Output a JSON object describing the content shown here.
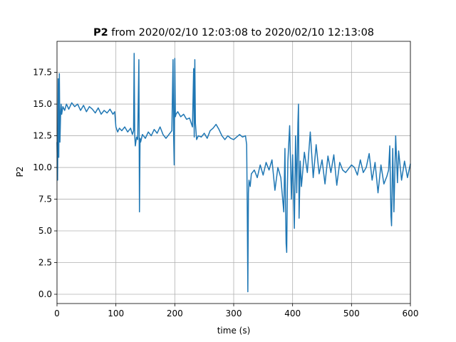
{
  "chart_data": {
    "type": "line",
    "title_label": "P2",
    "title": "from 2020/02/10 12:03:08 to 2020/02/10 12:13:08",
    "xlabel": "time (s)",
    "ylabel": "P2",
    "xlim": [
      0,
      600
    ],
    "ylim": [
      -0.73,
      19.95
    ],
    "xticks": [
      0,
      100,
      200,
      300,
      400,
      500,
      600
    ],
    "yticks": [
      {
        "value": 0,
        "label": "0.0"
      },
      2.5,
      {
        "value": 5,
        "label": "5.0"
      },
      7.5,
      {
        "value": 10,
        "label": "10.0"
      },
      12.5,
      {
        "value": 15,
        "label": "15.0"
      },
      17.5
    ],
    "grid": true,
    "x": [
      0,
      1,
      2,
      3,
      4,
      5,
      6,
      7,
      8,
      10,
      13,
      16,
      20,
      25,
      30,
      35,
      40,
      45,
      50,
      55,
      60,
      65,
      70,
      75,
      80,
      85,
      90,
      95,
      98,
      100,
      103,
      106,
      110,
      115,
      120,
      125,
      128,
      130,
      131,
      132,
      133,
      135,
      137,
      139,
      140,
      141,
      142,
      145,
      150,
      155,
      160,
      165,
      170,
      175,
      180,
      185,
      190,
      195,
      197,
      198,
      199,
      200,
      201,
      202,
      205,
      210,
      215,
      220,
      225,
      230,
      232,
      233,
      234,
      235,
      237,
      240,
      245,
      250,
      255,
      260,
      265,
      270,
      275,
      280,
      285,
      290,
      295,
      300,
      305,
      310,
      315,
      320,
      322,
      323,
      324,
      325,
      326,
      328,
      330,
      335,
      340,
      345,
      350,
      355,
      360,
      365,
      370,
      375,
      380,
      385,
      387,
      388,
      389,
      390,
      391,
      392,
      395,
      398,
      400,
      403,
      405,
      407,
      409,
      410,
      411,
      413,
      415,
      420,
      425,
      430,
      435,
      440,
      445,
      450,
      455,
      460,
      465,
      470,
      475,
      480,
      485,
      490,
      495,
      500,
      505,
      510,
      515,
      520,
      525,
      530,
      535,
      540,
      545,
      550,
      555,
      560,
      563,
      565,
      567,
      568,
      570,
      572,
      575,
      578,
      580,
      585,
      590,
      595,
      600
    ],
    "series": [
      {
        "name": "P2",
        "color": "#1f77b4",
        "values": [
          12,
          9,
          17,
          10.8,
          17.4,
          12,
          14,
          15,
          14.2,
          14.8,
          14.5,
          15,
          14.6,
          15.1,
          14.8,
          15,
          14.5,
          14.9,
          14.4,
          14.8,
          14.6,
          14.3,
          14.7,
          14.2,
          14.5,
          14.3,
          14.6,
          14.2,
          14.4,
          13.2,
          12.8,
          13.1,
          12.9,
          13.2,
          12.8,
          13.1,
          12.6,
          12.9,
          19,
          12.5,
          11.7,
          12.4,
          12.2,
          18.5,
          6.5,
          12.3,
          12,
          12.6,
          12.3,
          12.8,
          12.5,
          13,
          12.7,
          13.2,
          12.6,
          12.3,
          12.6,
          12.9,
          18.5,
          12.5,
          10.2,
          18.6,
          14,
          14.2,
          14.4,
          14,
          14.2,
          13.8,
          13.9,
          13.2,
          17.8,
          12.4,
          18.5,
          13.5,
          12.2,
          12.5,
          12.4,
          12.7,
          12.3,
          12.9,
          13.1,
          13.4,
          13,
          12.5,
          12.2,
          12.5,
          12.3,
          12.2,
          12.4,
          12.6,
          12.4,
          12.5,
          11.8,
          7,
          0.2,
          8,
          9,
          8.5,
          9.5,
          9.8,
          9.2,
          10.2,
          9.4,
          10.4,
          9.8,
          10.6,
          8.2,
          10,
          9.2,
          6.5,
          11.5,
          7,
          4,
          3.3,
          8,
          10.5,
          13.3,
          7.5,
          11,
          5.2,
          12.5,
          8,
          13.5,
          15,
          6,
          10.5,
          8.5,
          11.2,
          9.6,
          12.8,
          9.2,
          11.8,
          9.5,
          10.6,
          8.7,
          10.9,
          9.6,
          11,
          8.6,
          10.4,
          9.8,
          9.6,
          9.9,
          10.2,
          10,
          9.4,
          10.6,
          9.6,
          10,
          11.1,
          9,
          10.4,
          8,
          10.2,
          8.7,
          9.3,
          9.8,
          11.7,
          6.2,
          5.4,
          11.5,
          6.5,
          12.5,
          8.8,
          11.3,
          9,
          10.5,
          9.2,
          10.3
        ]
      }
    ]
  }
}
